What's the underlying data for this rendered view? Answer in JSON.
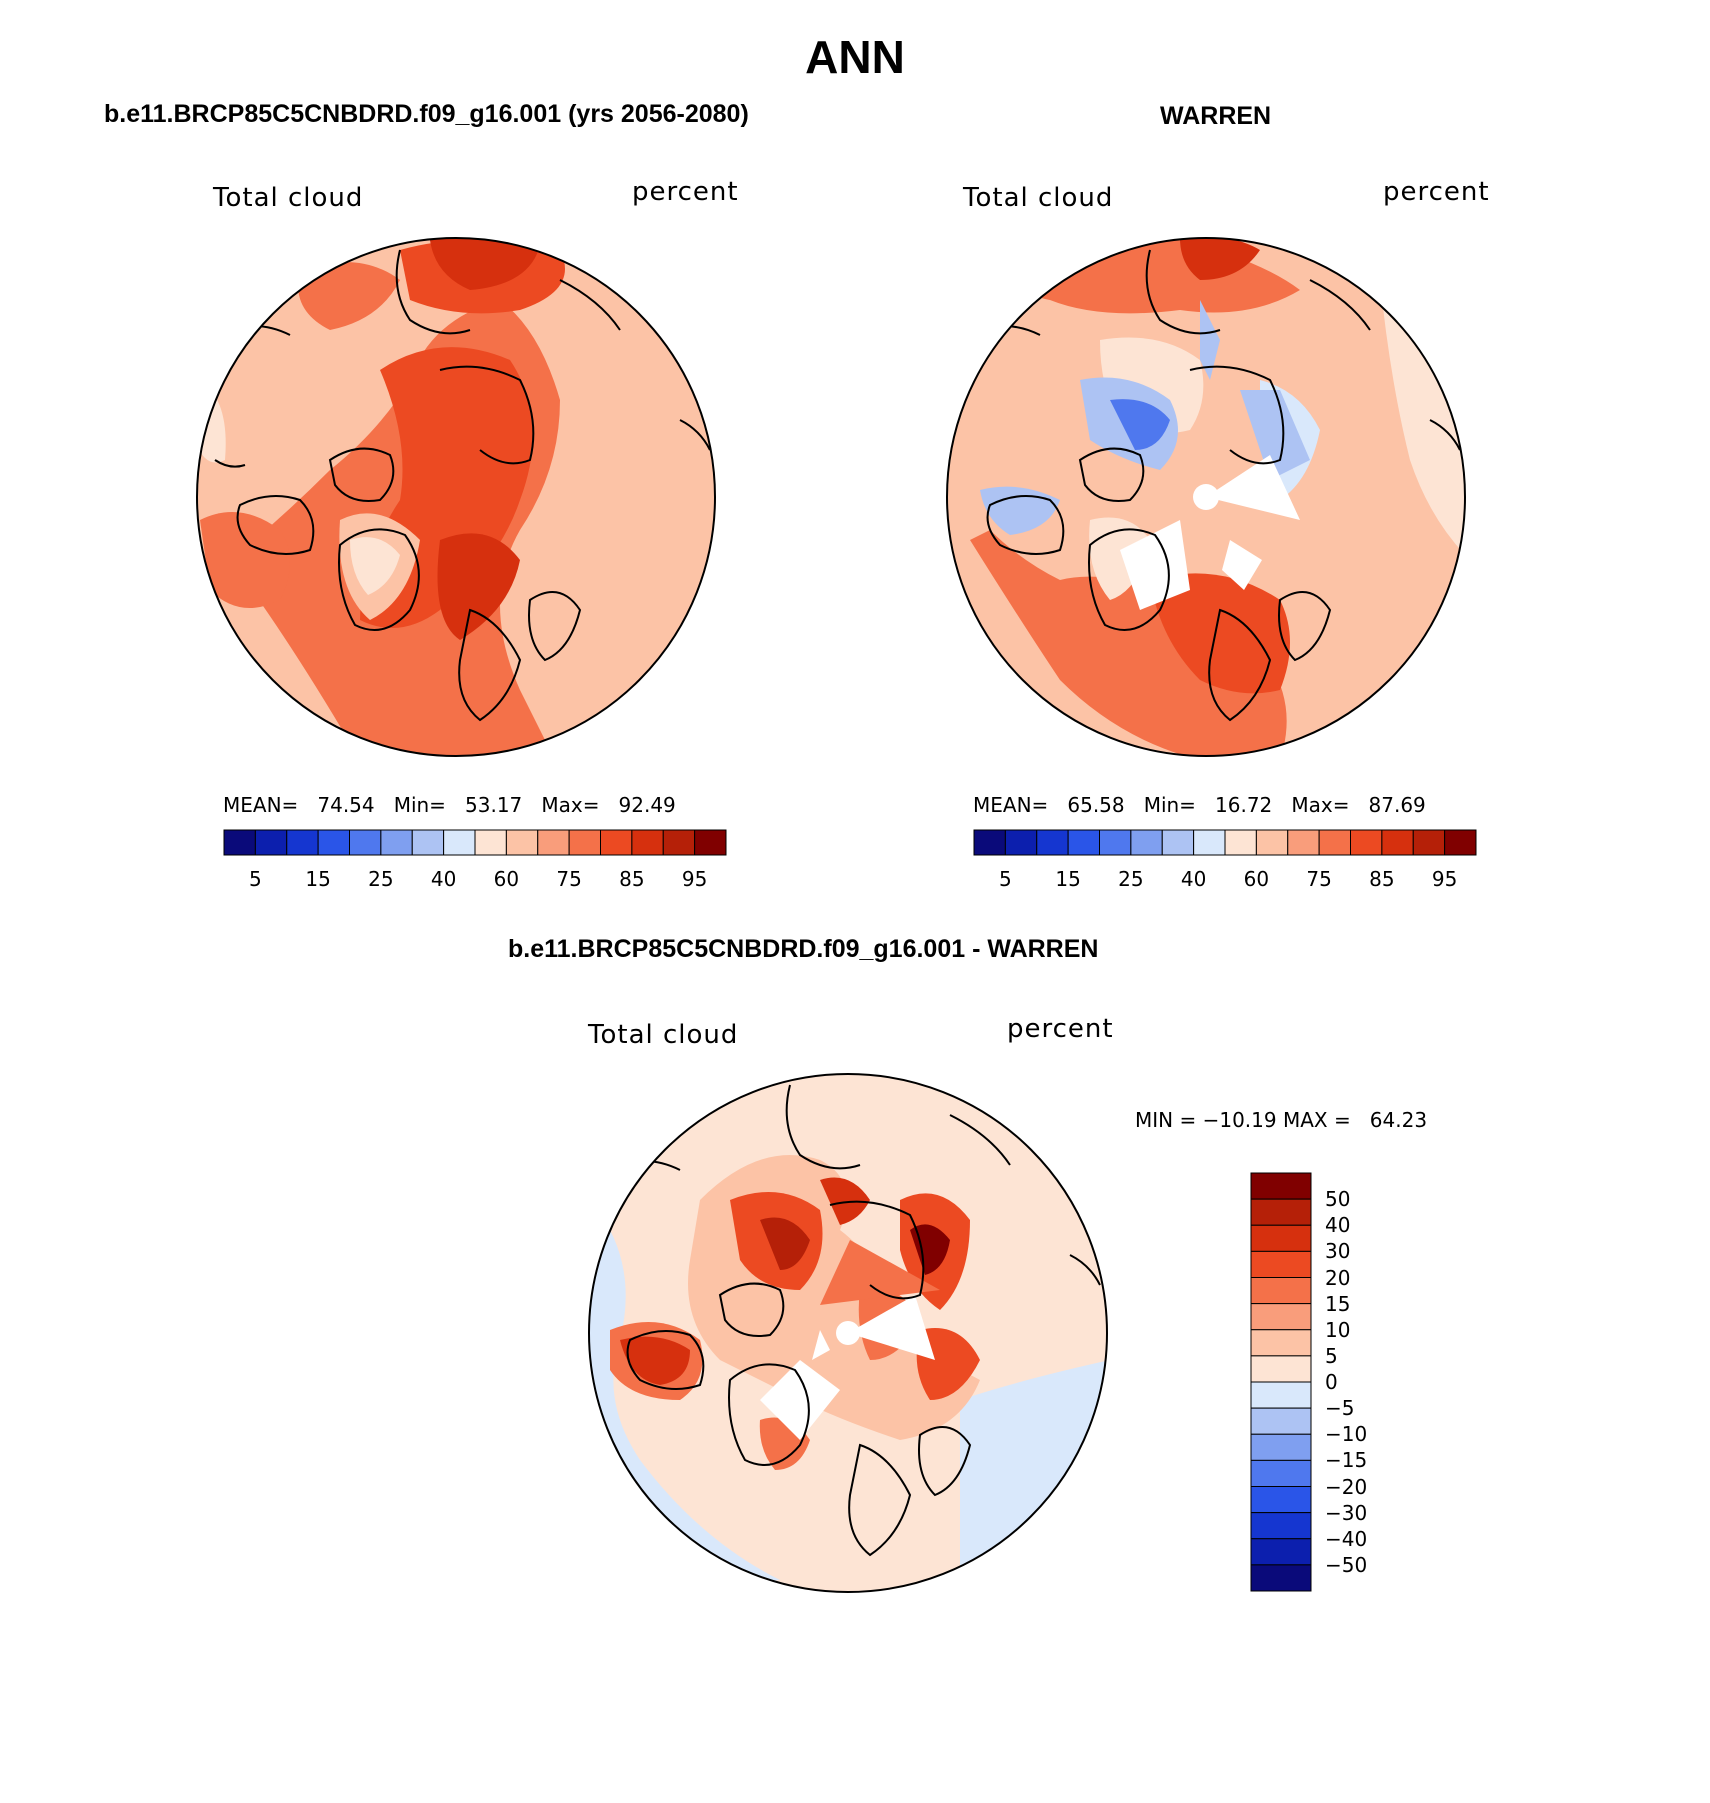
{
  "figure_title": "ANN",
  "panels": {
    "model": {
      "heading": "b.e11.BRCP85C5CNBDRD.f09_g16.001 (yrs 2056-2080)",
      "variable": "Total cloud",
      "units": "percent",
      "stats": "MEAN=   74.54   Min=   53.17   Max=   92.49"
    },
    "obs": {
      "heading": "WARREN",
      "variable": "Total cloud",
      "units": "percent",
      "stats": "MEAN=   65.58   Min=   16.72   Max=   87.69"
    },
    "diff": {
      "heading": "b.e11.BRCP85C5CNBDRD.f09_g16.001 - WARREN",
      "variable": "Total cloud",
      "units": "percent",
      "stats": "MIN = −10.19 MAX =   64.23"
    }
  },
  "colorbars": {
    "abs": {
      "colors": [
        "#0a0a7a",
        "#0c1fae",
        "#1536d0",
        "#2a55e8",
        "#4f78ee",
        "#7f9ff0",
        "#adc3f3",
        "#d9e8fb",
        "#fde4d4",
        "#fcc3a6",
        "#f99d7b",
        "#f47149",
        "#ec4a22",
        "#d6300e",
        "#b52008",
        "#800000"
      ],
      "tick_labels": [
        "5",
        "15",
        "25",
        "40",
        "60",
        "75",
        "85",
        "95"
      ]
    },
    "diff": {
      "colors": [
        "#0a0a7a",
        "#0c1fae",
        "#1536d0",
        "#2a55e8",
        "#4f78ee",
        "#7f9ff0",
        "#adc3f3",
        "#d9e8fb",
        "#fde4d4",
        "#fcc3a6",
        "#f99d7b",
        "#f47149",
        "#ec4a22",
        "#d6300e",
        "#b52008",
        "#800000"
      ],
      "tick_labels": [
        "50",
        "40",
        "30",
        "20",
        "15",
        "10",
        "5",
        "0",
        "−5",
        "−10",
        "−15",
        "−20",
        "−30",
        "−40",
        "−50"
      ]
    }
  },
  "chart_data": [
    {
      "type": "heatmap",
      "title": "b.e11.BRCP85C5CNBDRD.f09_g16.001 (yrs 2056-2080)",
      "variable": "Total cloud",
      "units": "percent",
      "projection": "north polar stereographic",
      "mean": 74.54,
      "min": 53.17,
      "max": 92.49,
      "levels": [
        5,
        10,
        15,
        20,
        25,
        30,
        40,
        50,
        60,
        70,
        75,
        80,
        85,
        90,
        95
      ]
    },
    {
      "type": "heatmap",
      "title": "WARREN",
      "variable": "Total cloud",
      "units": "percent",
      "projection": "north polar stereographic",
      "mean": 65.58,
      "min": 16.72,
      "max": 87.69,
      "levels": [
        5,
        10,
        15,
        20,
        25,
        30,
        40,
        50,
        60,
        70,
        75,
        80,
        85,
        90,
        95
      ]
    },
    {
      "type": "heatmap",
      "title": "b.e11.BRCP85C5CNBDRD.f09_g16.001 - WARREN",
      "variable": "Total cloud",
      "units": "percent",
      "projection": "north polar stereographic",
      "min": -10.19,
      "max": 64.23,
      "levels": [
        -50,
        -40,
        -30,
        -20,
        -15,
        -10,
        -5,
        0,
        5,
        10,
        15,
        20,
        30,
        40,
        50
      ]
    }
  ]
}
